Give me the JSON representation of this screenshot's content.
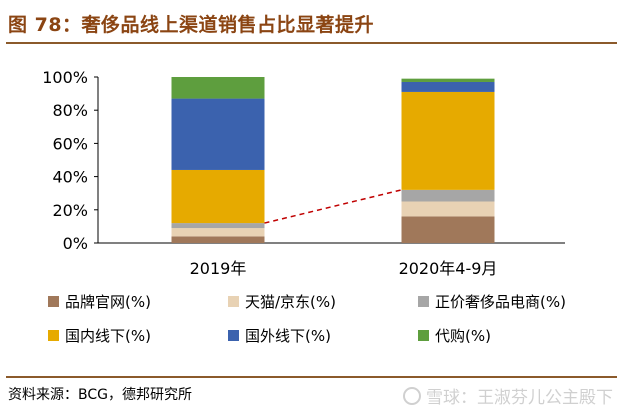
{
  "figure": {
    "title": "图 78：奢侈品线上渠道销售占比显著提升",
    "source": "资料来源：BCG，德邦研究所",
    "watermark": "雪球：王淑芬儿公主殿下"
  },
  "colors": {
    "title": "#8B4513",
    "rule": "#8B5A2B",
    "trend_line": "#C00000"
  },
  "chart_data": {
    "type": "bar",
    "stacked": true,
    "categories": [
      "2019年",
      "2020年4-9月"
    ],
    "ylim": [
      0,
      100
    ],
    "yticks": [
      0,
      20,
      40,
      60,
      80,
      100
    ],
    "ytick_labels": [
      "0%",
      "20%",
      "40%",
      "60%",
      "80%",
      "100%"
    ],
    "grid": false,
    "legend_position": "bottom",
    "series": [
      {
        "name": "品牌官网(%)",
        "color": "#A0785A",
        "values": [
          4,
          16
        ]
      },
      {
        "name": "天猫/京东(%)",
        "color": "#E8D2B4",
        "values": [
          5,
          9
        ]
      },
      {
        "name": "正价奢侈品电商(%)",
        "color": "#A6A6A6",
        "values": [
          3,
          7
        ]
      },
      {
        "name": "国内线下(%)",
        "color": "#E6AA00",
        "values": [
          32,
          59
        ]
      },
      {
        "name": "国外线下(%)",
        "color": "#3B62AE",
        "values": [
          43,
          6
        ]
      },
      {
        "name": "代购(%)",
        "color": "#5E9E3E",
        "values": [
          13,
          2
        ]
      }
    ],
    "trend_line": {
      "from_category": 0,
      "to_category": 1,
      "from_value": 12,
      "to_value": 32,
      "style": "dashed"
    }
  }
}
